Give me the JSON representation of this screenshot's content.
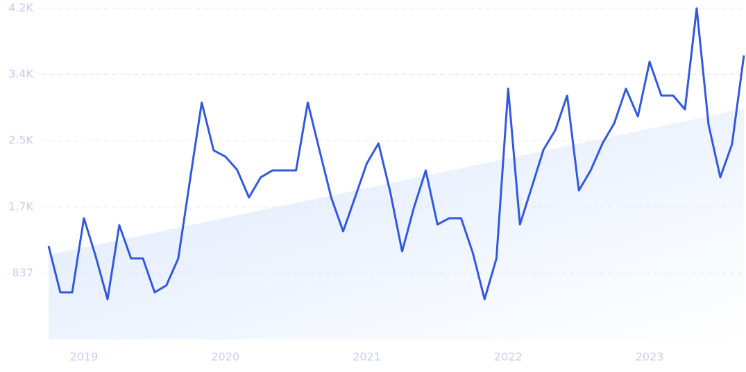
{
  "chart_data": {
    "type": "line",
    "x": [
      2018.75,
      2018.833,
      2018.917,
      2019,
      2019.083,
      2019.167,
      2019.25,
      2019.333,
      2019.417,
      2019.5,
      2019.583,
      2019.667,
      2019.75,
      2019.833,
      2019.917,
      2020,
      2020.083,
      2020.167,
      2020.25,
      2020.333,
      2020.417,
      2020.5,
      2020.583,
      2020.667,
      2020.75,
      2020.833,
      2020.917,
      2021,
      2021.083,
      2021.167,
      2021.25,
      2021.333,
      2021.417,
      2021.5,
      2021.583,
      2021.667,
      2021.75,
      2021.833,
      2021.917,
      2022,
      2022.083,
      2022.167,
      2022.25,
      2022.333,
      2022.417,
      2022.5,
      2022.583,
      2022.667,
      2022.75,
      2022.833,
      2022.917,
      2023,
      2023.083,
      2023.167,
      2023.25,
      2023.333,
      2023.417,
      2023.5,
      2023.583,
      2023.667
    ],
    "series": [
      {
        "color": "#3358e0",
        "values": [
          1182,
          595,
          595,
          1532,
          1051,
          508,
          1445,
          1024,
          1024,
          595,
          683,
          1024,
          2014,
          2994,
          2390,
          2311,
          2145,
          1795,
          2049,
          2136,
          2136,
          2136,
          2994,
          2381,
          1786,
          1366,
          1795,
          2224,
          2478,
          1856,
          1112,
          1663,
          2136,
          1453,
          1532,
          1532,
          1094,
          508,
          1024,
          3169,
          1453,
          1926,
          2399,
          2644,
          3082,
          1882,
          2136,
          2478,
          2732,
          3169,
          2819,
          3510,
          3082,
          3082,
          2907,
          4185,
          2714,
          2049,
          2469,
          3589
        ]
      }
    ],
    "trend": {
      "x": [
        2018.75,
        2023.667
      ],
      "values": [
        1068,
        2915
      ]
    },
    "xlim": [
      2018.75,
      2023.667
    ],
    "xticks": [
      2019,
      2020,
      2021,
      2022,
      2023
    ],
    "ylim": [
      0,
      4185
    ],
    "yticks": [
      {
        "value": 837,
        "label": "837"
      },
      {
        "value": 1674,
        "label": "1.7K"
      },
      {
        "value": 2511,
        "label": "2.5K"
      },
      {
        "value": 3348,
        "label": "3.4K"
      },
      {
        "value": 4185,
        "label": "4.2K"
      }
    ],
    "grid": true
  }
}
